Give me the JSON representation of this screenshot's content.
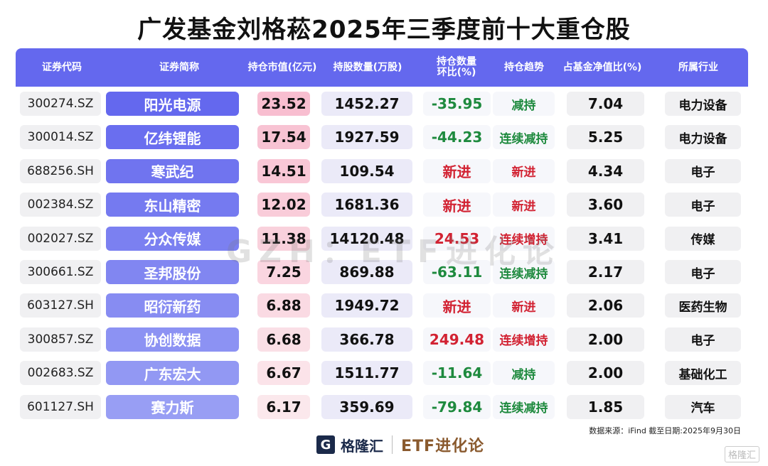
{
  "title": "广发基金刘格菘2025年三季度前十大重仓股",
  "columns": [
    "证券代码",
    "证券简称",
    "持仓市值(亿元)",
    "持股数量(万股)",
    "持仓数量\n环比(%)",
    "持仓趋势",
    "占基金净值比(%)",
    "所属行业"
  ],
  "rows": [
    {
      "code": "300274.SZ",
      "name": "阳光电源",
      "mv": "23.52",
      "qty": "1452.27",
      "chg": "-35.95",
      "trend": "减持",
      "pct": "7.04",
      "ind": "电力设备"
    },
    {
      "code": "300014.SZ",
      "name": "亿纬锂能",
      "mv": "17.54",
      "qty": "1927.59",
      "chg": "-44.23",
      "trend": "连续减持",
      "pct": "5.25",
      "ind": "电力设备"
    },
    {
      "code": "688256.SH",
      "name": "寒武纪",
      "mv": "14.51",
      "qty": "109.54",
      "chg": "新进",
      "trend": "新进",
      "pct": "4.34",
      "ind": "电子"
    },
    {
      "code": "002384.SZ",
      "name": "东山精密",
      "mv": "12.02",
      "qty": "1681.36",
      "chg": "新进",
      "trend": "新进",
      "pct": "3.60",
      "ind": "电子"
    },
    {
      "code": "002027.SZ",
      "name": "分众传媒",
      "mv": "11.38",
      "qty": "14120.48",
      "chg": "24.53",
      "trend": "连续增持",
      "pct": "3.41",
      "ind": "传媒"
    },
    {
      "code": "300661.SZ",
      "name": "圣邦股份",
      "mv": "7.25",
      "qty": "869.88",
      "chg": "-63.11",
      "trend": "连续减持",
      "pct": "2.17",
      "ind": "电子"
    },
    {
      "code": "603127.SH",
      "name": "昭衍新药",
      "mv": "6.88",
      "qty": "1949.72",
      "chg": "新进",
      "trend": "新进",
      "pct": "2.06",
      "ind": "医药生物"
    },
    {
      "code": "300857.SZ",
      "name": "协创数据",
      "mv": "6.68",
      "qty": "366.78",
      "chg": "249.48",
      "trend": "连续增持",
      "pct": "2.00",
      "ind": "电子"
    },
    {
      "code": "002683.SZ",
      "name": "广东宏大",
      "mv": "6.67",
      "qty": "1511.77",
      "chg": "-11.64",
      "trend": "减持",
      "pct": "2.00",
      "ind": "基础化工"
    },
    {
      "code": "601127.SH",
      "name": "赛力斯",
      "mv": "6.17",
      "qty": "359.69",
      "chg": "-79.84",
      "trend": "连续减持",
      "pct": "1.85",
      "ind": "汽车"
    }
  ],
  "watermark": "GZH：ETF进化论",
  "source": "数据来源：iFind 截至日期:2025年9月30日",
  "logo": {
    "mark": "G",
    "name": "格隆汇",
    "brand": "ETF进化论"
  },
  "corner_logo": "格隆汇",
  "colors": {
    "header": "#6468ee",
    "increase": "#d22232",
    "decrease": "#1e8a3e"
  }
}
